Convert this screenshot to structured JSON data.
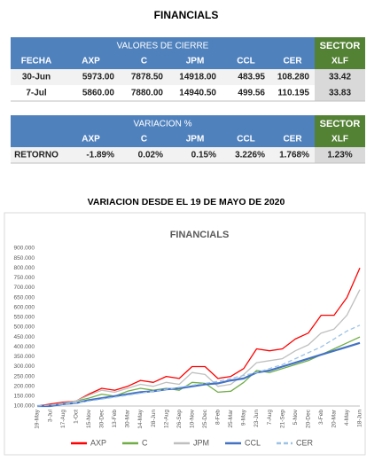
{
  "title": "FINANCIALS",
  "table1": {
    "group": "VALORES DE CIERRE",
    "sector": "SECTOR",
    "columns": [
      "FECHA",
      "AXP",
      "C",
      "JPM",
      "CCL",
      "CER",
      "XLF"
    ],
    "rows": [
      [
        "30-Jun",
        "5973.00",
        "7878.50",
        "14918.00",
        "483.95",
        "108.280",
        "33.42"
      ],
      [
        "7-Jul",
        "5860.00",
        "7880.00",
        "14940.50",
        "499.56",
        "110.195",
        "33.83"
      ]
    ]
  },
  "table2": {
    "group": "VARIACION %",
    "sector": "SECTOR",
    "columns": [
      null,
      "AXP",
      "C",
      "JPM",
      "CCL",
      "CER",
      "XLF"
    ],
    "rows": [
      [
        "RETORNO",
        "-1.89%",
        "0.02%",
        "0.15%",
        "3.226%",
        "1.768%",
        "1.23%"
      ]
    ]
  },
  "subtitle": "VARIACION DESDE EL 19 DE MAYO DE 2020",
  "chart_data": {
    "type": "line",
    "title": "FINANCIALS",
    "categories": [
      "19-May",
      "3-Jul",
      "17-Aug",
      "1-Oct",
      "15-Nov",
      "30-Dec",
      "13-Feb",
      "30-Mar",
      "14-May",
      "28-Jun",
      "12-Aug",
      "26-Sep",
      "10-Nov",
      "25-Dec",
      "8-Feb",
      "25-Mar",
      "9-May",
      "23-Jun",
      "7-Aug",
      "21-Sep",
      "5-Nov",
      "20-Dec",
      "3-Feb",
      "20-Mar",
      "4-May",
      "18-Jun"
    ],
    "series": [
      {
        "name": "AXP",
        "color": "#ff0000",
        "values": [
          100,
          110,
          120,
          125,
          160,
          190,
          180,
          200,
          230,
          220,
          250,
          240,
          300,
          300,
          240,
          250,
          290,
          390,
          380,
          390,
          440,
          470,
          560,
          560,
          650,
          800
        ]
      },
      {
        "name": "C",
        "color": "#70ad47",
        "values": [
          100,
          105,
          115,
          125,
          140,
          160,
          150,
          175,
          190,
          180,
          190,
          180,
          220,
          215,
          170,
          175,
          220,
          280,
          270,
          290,
          310,
          330,
          360,
          390,
          420,
          450
        ]
      },
      {
        "name": "JPM",
        "color": "#bfbfbf",
        "values": [
          100,
          105,
          115,
          125,
          155,
          180,
          170,
          190,
          210,
          200,
          220,
          210,
          270,
          260,
          200,
          210,
          260,
          320,
          330,
          340,
          380,
          410,
          470,
          490,
          560,
          690
        ]
      },
      {
        "name": "CCL",
        "color": "#4472c4",
        "values": [
          100,
          100,
          110,
          115,
          130,
          140,
          150,
          160,
          170,
          175,
          185,
          190,
          200,
          210,
          215,
          230,
          240,
          270,
          280,
          300,
          320,
          340,
          360,
          380,
          400,
          420
        ]
      },
      {
        "name": "CER",
        "color": "#9dc3e6",
        "dashed": true,
        "values": [
          100,
          105,
          110,
          115,
          125,
          135,
          145,
          155,
          165,
          175,
          185,
          195,
          205,
          215,
          225,
          240,
          255,
          270,
          290,
          310,
          340,
          370,
          400,
          440,
          480,
          510
        ]
      }
    ],
    "ylim": [
      100,
      900
    ],
    "yticks": [
      {
        "value": 100,
        "label": "100.000"
      },
      {
        "value": 150,
        "label": "150.000"
      },
      {
        "value": 200,
        "label": "200.000"
      },
      {
        "value": 250,
        "label": "250.000"
      },
      {
        "value": 300,
        "label": "300.000"
      },
      {
        "value": 350,
        "label": "350.000"
      },
      {
        "value": 400,
        "label": "400.000"
      },
      {
        "value": 450,
        "label": "450.000"
      },
      {
        "value": 500,
        "label": "500.000"
      },
      {
        "value": 550,
        "label": "550.000"
      },
      {
        "value": 600,
        "label": "600.000"
      },
      {
        "value": 650,
        "label": "650.000"
      },
      {
        "value": 700,
        "label": "700.000"
      },
      {
        "value": 750,
        "label": "750.000"
      },
      {
        "value": 800,
        "label": "800.000"
      },
      {
        "value": 850,
        "label": "850.000"
      },
      {
        "value": 900,
        "label": "900.000"
      }
    ],
    "grid": false,
    "legend": "bottom"
  }
}
